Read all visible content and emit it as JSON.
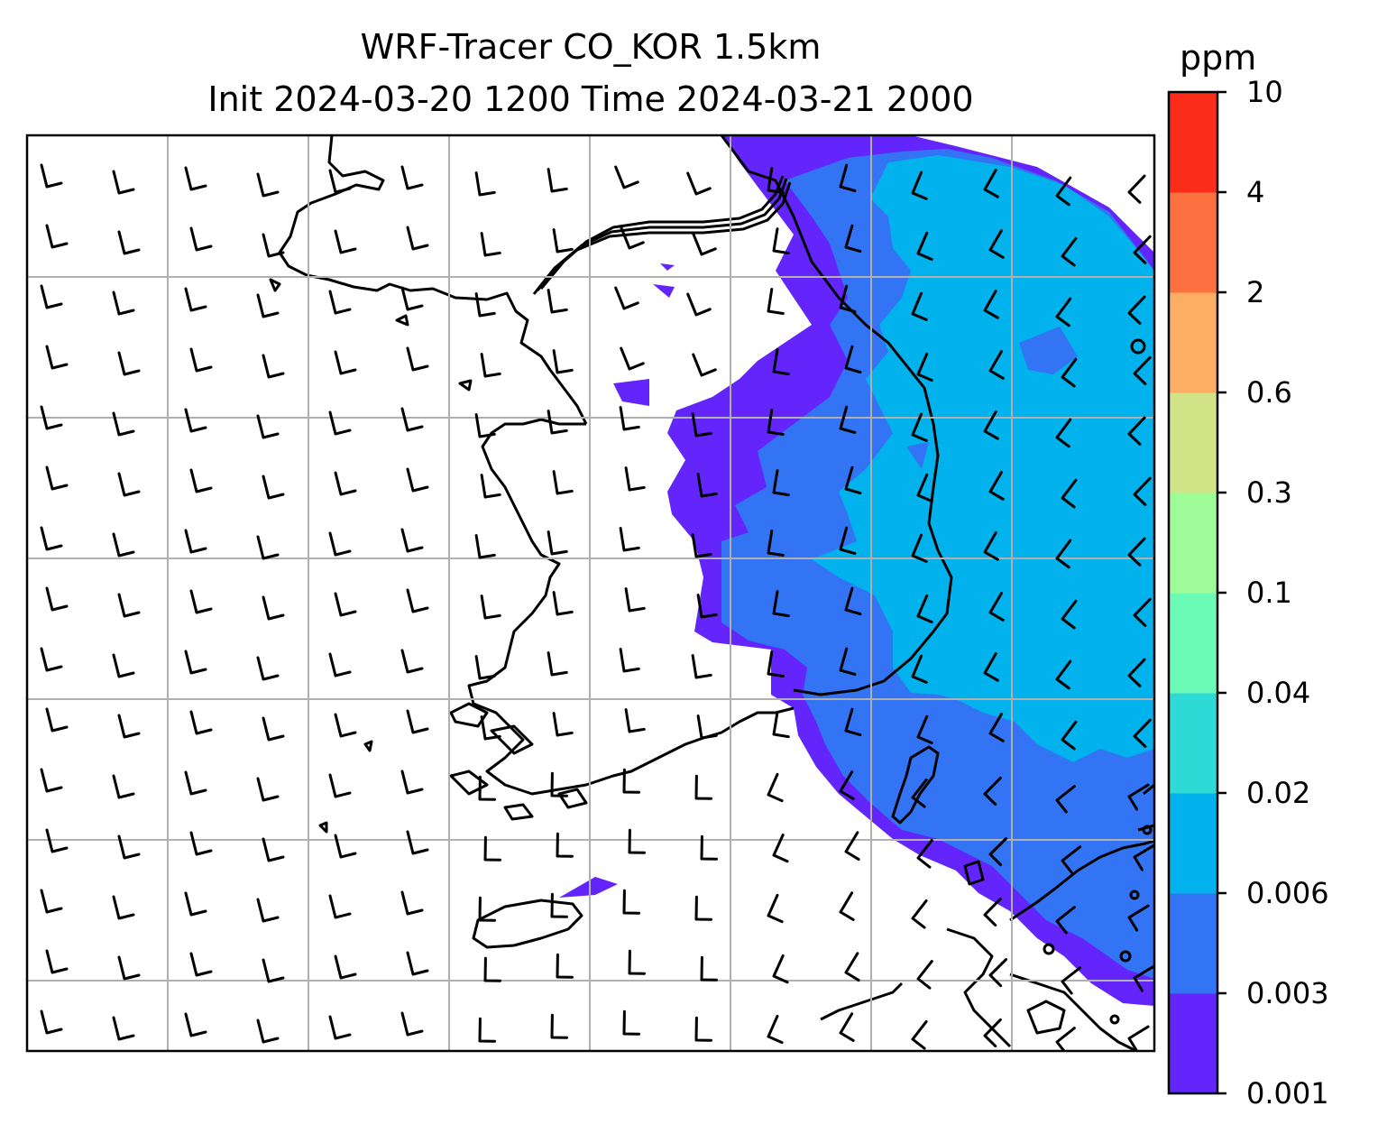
{
  "title": {
    "line1": "WRF-Tracer CO_KOR 1.5km",
    "line2": "Init 2024-03-20 1200 Time 2024-03-21 2000"
  },
  "colorbar": {
    "unit": "ppm",
    "tick_labels": [
      "0.001",
      "0.003",
      "0.006",
      "0.02",
      "0.04",
      "0.1",
      "0.3",
      "0.6",
      "2",
      "4",
      "10"
    ],
    "colors": [
      "#6325fb",
      "#3274f4",
      "#01b2ec",
      "#2edad6",
      "#6cfbb6",
      "#9efc98",
      "#d1e386",
      "#fcae63",
      "#fd7140",
      "#fb2c19"
    ]
  },
  "map": {
    "coastline_color": "#000000",
    "gridline_color": "#b0b0b0",
    "wind_barb_color": "#000000",
    "tracer_levels_present": [
      "0.001",
      "0.003",
      "0.006"
    ]
  }
}
